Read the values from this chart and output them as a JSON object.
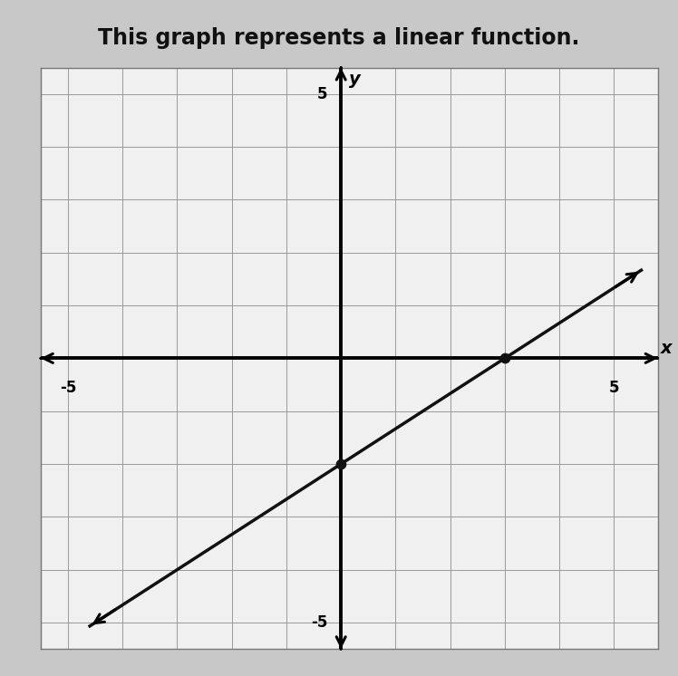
{
  "title": "This graph represents a linear function.",
  "title_fontsize": 17,
  "title_color": "#111111",
  "title_fontweight": "bold",
  "xlim": [
    -5.5,
    5.8
  ],
  "ylim": [
    -5.5,
    5.5
  ],
  "tick_labels_fontsize": 12,
  "xlabel": "x",
  "ylabel": "y",
  "axis_label_fontsize": 14,
  "slope": 0.6667,
  "intercept": -2,
  "line_x_start": -4.6,
  "line_x_end": 5.5,
  "line_color": "#111111",
  "line_width": 2.5,
  "dot_points": [
    [
      0,
      -2
    ],
    [
      3,
      0
    ]
  ],
  "dot_color": "#111111",
  "dot_size": 55,
  "grid_color": "#999999",
  "grid_linewidth": 0.7,
  "background_color": "#c8c8c8",
  "plot_bg_color": "#f0f0f0",
  "box_color": "#777777"
}
